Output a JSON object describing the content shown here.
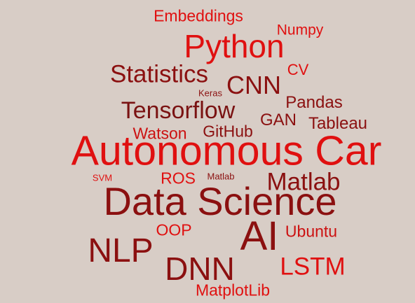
{
  "colors": {
    "background": "#d8cdc6",
    "red": "#e01010",
    "crimson": "#cc1111",
    "dark_red": "#8b1010",
    "maroon": "#7a1212"
  },
  "words": {
    "embeddings": "Embeddings",
    "numpy": "Numpy",
    "python": "Python",
    "statistics": "Statistics",
    "cv": "CV",
    "keras": "Keras",
    "cnn": "CNN",
    "pandas": "Pandas",
    "tensorflow": "Tensorflow",
    "gan": "GAN",
    "tableau": "Tableau",
    "watson": "Watson",
    "github": "GitHub",
    "autonomous_car": "Autonomous Car",
    "svm": "SVM",
    "ros": "ROS",
    "matlab_small": "Matlab",
    "matlab_large": "Matlab",
    "data_science": "Data Science",
    "oop": "OOP",
    "ai": "AI",
    "ubuntu": "Ubuntu",
    "nlp": "NLP",
    "dnn": "DNN",
    "lstm": "LSTM",
    "matplotlib": "MatplotLib"
  }
}
